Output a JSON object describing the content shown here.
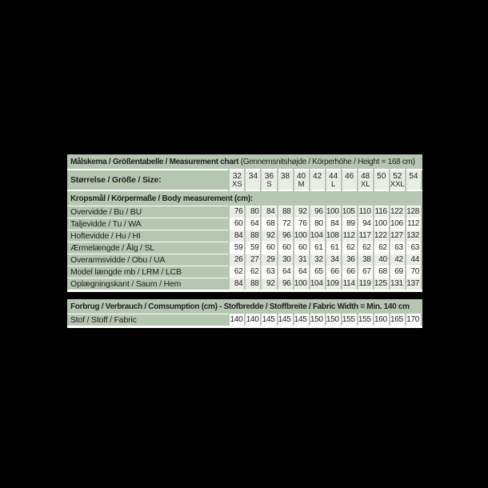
{
  "colors": {
    "background": "#000000",
    "band_green": "#b5c6b1",
    "cell_tint": "#eaede6",
    "cell_white": "#fcfdfb",
    "separator_white": "#ffffff",
    "text": "#212121"
  },
  "chart_data": {
    "type": "table",
    "title_bold": "Målskema / Größentabelle / Measurement chart",
    "title_note": "(Gennemsnitshøjde / Körperhöhe / Height = 168 cm)",
    "size_header": {
      "label": "Størrelse / Größe / Size:",
      "sizes": [
        {
          "number": "32",
          "letter": "XS"
        },
        {
          "number": "34",
          "letter": ""
        },
        {
          "number": "36",
          "letter": "S"
        },
        {
          "number": "38",
          "letter": ""
        },
        {
          "number": "40",
          "letter": "M"
        },
        {
          "number": "42",
          "letter": ""
        },
        {
          "number": "44",
          "letter": "L"
        },
        {
          "number": "46",
          "letter": ""
        },
        {
          "number": "48",
          "letter": "XL"
        },
        {
          "number": "50",
          "letter": ""
        },
        {
          "number": "52",
          "letter": "XXL"
        },
        {
          "number": "54",
          "letter": ""
        }
      ]
    },
    "body_section_header": "Kropsmål / Körpermaße / Body measurement (cm):",
    "body_rows": [
      {
        "label": "Overvidde / Bu / BU",
        "values": [
          76,
          80,
          84,
          88,
          92,
          96,
          100,
          105,
          110,
          116,
          122,
          128
        ]
      },
      {
        "label": "Taljevidde / Tu / WA",
        "values": [
          60,
          64,
          68,
          72,
          76,
          80,
          84,
          89,
          94,
          100,
          106,
          112
        ]
      },
      {
        "label": "Hoftevidde / Hu / HI",
        "values": [
          84,
          88,
          92,
          96,
          100,
          104,
          108,
          112,
          117,
          122,
          127,
          132
        ]
      },
      {
        "label": "Ærmelængde / Ålg / SL",
        "values": [
          59,
          59,
          60,
          60,
          60,
          61,
          61,
          62,
          62,
          62,
          63,
          63
        ]
      },
      {
        "label": "Overarmsvidde / Obu / UA",
        "values": [
          26,
          27,
          29,
          30,
          31,
          32,
          34,
          36,
          38,
          40,
          42,
          44
        ]
      },
      {
        "label": "Model længde mb / LRM / LCB",
        "values": [
          62,
          62,
          63,
          64,
          64,
          65,
          66,
          66,
          67,
          68,
          69,
          70
        ]
      },
      {
        "label": "Oplægningskant / Saum / Hem",
        "values": [
          84,
          88,
          92,
          96,
          100,
          104,
          109,
          114,
          119,
          125,
          131,
          137
        ]
      }
    ],
    "fabric_section_header": "Forbrug / Verbrauch / Comsumption (cm) - Stofbredde / Stoffbreite / Fabric Width = Min. 140 cm",
    "fabric_rows": [
      {
        "label": "Stof / Stoff / Fabric",
        "values": [
          140,
          140,
          145,
          145,
          145,
          150,
          150,
          155,
          155,
          160,
          165,
          170
        ]
      }
    ]
  }
}
